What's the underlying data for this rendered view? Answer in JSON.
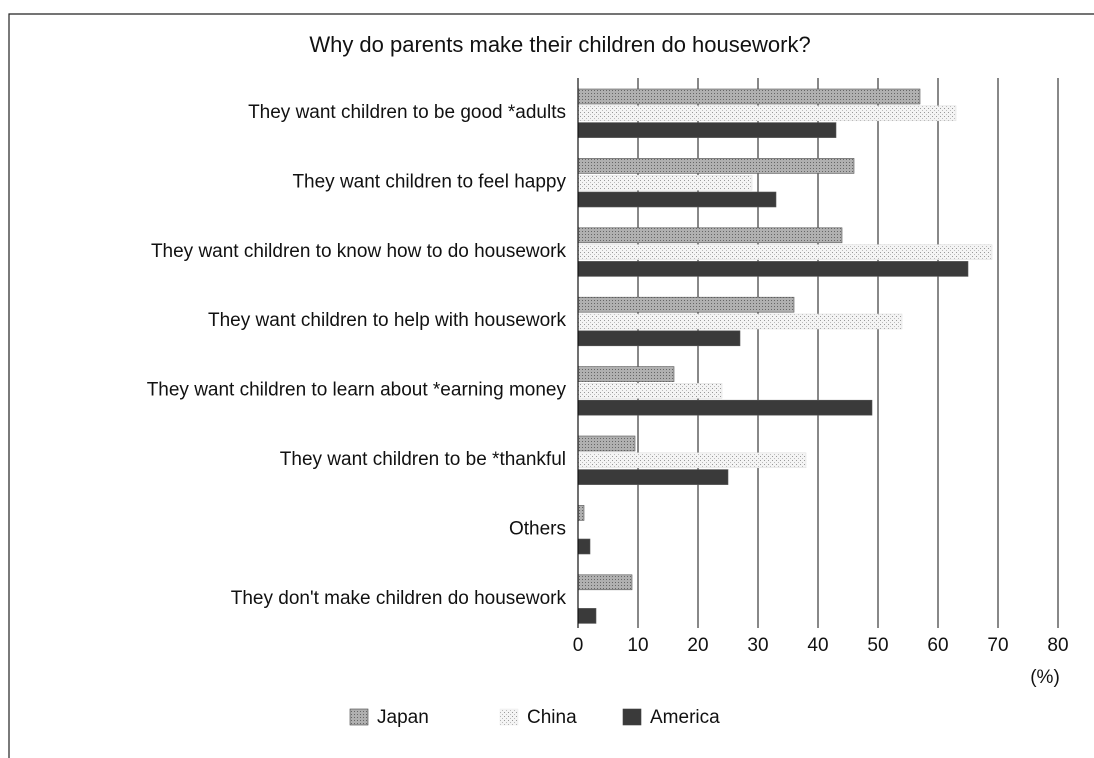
{
  "chart_data": {
    "type": "hbar",
    "title": "Why do parents make their children do housework?",
    "x_label": "(%)",
    "categories": [
      "They want children to be good *adults",
      "They want children to feel happy",
      "They want children to know how to do housework",
      "They want children to help with housework",
      "They want children to learn about *earning money",
      "They want children to be *thankful",
      "Others",
      "They don't make children do housework"
    ],
    "series": [
      {
        "name": "Japan",
        "color": "#a3a3a3",
        "values": [
          57,
          46,
          44,
          36,
          16,
          9.5,
          1,
          9
        ]
      },
      {
        "name": "China",
        "color": "#e8e8e8",
        "values": [
          63,
          29,
          69,
          54,
          24,
          38,
          0,
          0
        ]
      },
      {
        "name": "America",
        "color": "#3a3a3a",
        "values": [
          43,
          33,
          65,
          27,
          49,
          25,
          2,
          3
        ]
      }
    ],
    "xlim": [
      0,
      80
    ],
    "xticks": [
      0,
      10,
      20,
      30,
      40,
      50,
      60,
      70,
      80
    ],
    "grid": true
  }
}
